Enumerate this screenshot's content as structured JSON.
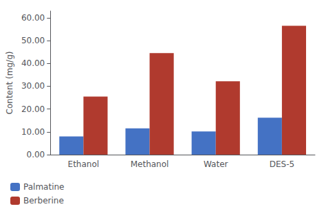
{
  "chart_data": {
    "type": "bar",
    "categories": [
      "Ethanol",
      "Methanol",
      "Water",
      "DES-5"
    ],
    "series": [
      {
        "name": "Palmatine",
        "color": "#4472C4",
        "values": [
          8.0,
          11.5,
          10.2,
          16.2
        ]
      },
      {
        "name": "Berberine",
        "color": "#B03A2E",
        "values": [
          25.5,
          44.5,
          32.2,
          56.5
        ]
      }
    ],
    "ylabel": "Content (mg/g)",
    "ylim": [
      0,
      63.0
    ],
    "yticks": [
      {
        "value": 0,
        "label": "0.00"
      },
      {
        "value": 10,
        "label": "10.00"
      },
      {
        "value": 20,
        "label": "20.00"
      },
      {
        "value": 30,
        "label": "30.00"
      },
      {
        "value": 40,
        "label": "40.00"
      },
      {
        "value": 50,
        "label": "50.00"
      },
      {
        "value": 60,
        "label": "60.00"
      }
    ],
    "grid": false,
    "legend": "lower left"
  }
}
